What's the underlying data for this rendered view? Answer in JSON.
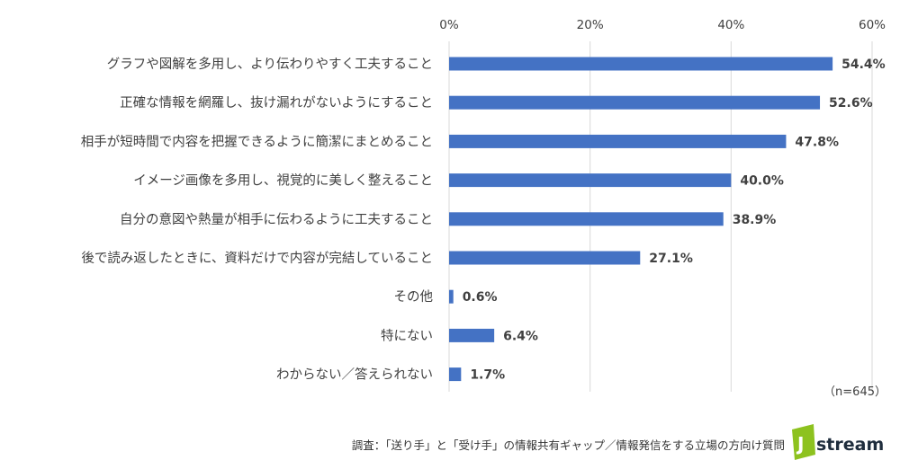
{
  "chart_data": {
    "type": "bar",
    "orientation": "horizontal",
    "categories": [
      "グラフや図解を多用し、より伝わりやすく工夫すること",
      "正確な情報を網羅し、抜け漏れがないようにすること",
      "相手が短時間で内容を把握できるように簡潔にまとめること",
      "イメージ画像を多用し、視覚的に美しく整えること",
      "自分の意図や熱量が相手に伝わるように工夫すること",
      "後で読み返したときに、資料だけで内容が完結していること",
      "その他",
      "特にない",
      "わからない／答えられない"
    ],
    "values": [
      54.4,
      52.6,
      47.8,
      40.0,
      38.9,
      27.1,
      0.6,
      6.4,
      1.7
    ],
    "value_labels": [
      "54.4%",
      "52.6%",
      "47.8%",
      "40.0%",
      "38.9%",
      "27.1%",
      "0.6%",
      "6.4%",
      "1.7%"
    ],
    "xlim": [
      0,
      60
    ],
    "x_ticks": [
      "0%",
      "20%",
      "40%",
      "60%"
    ],
    "x_tick_values": [
      0,
      20,
      40,
      60
    ],
    "axis_position": "top",
    "grid": true,
    "bar_color": "#4472c4",
    "grid_color": "#d9d9d9",
    "sample_note": "（n=645）"
  },
  "footer": {
    "source": "調査：「送り手」と「受け手」の情報共有ギャップ／情報発信をする立場の方向け質問",
    "logo_text": "stream",
    "logo_letter": "J",
    "logo_color": "#8dc21f"
  }
}
